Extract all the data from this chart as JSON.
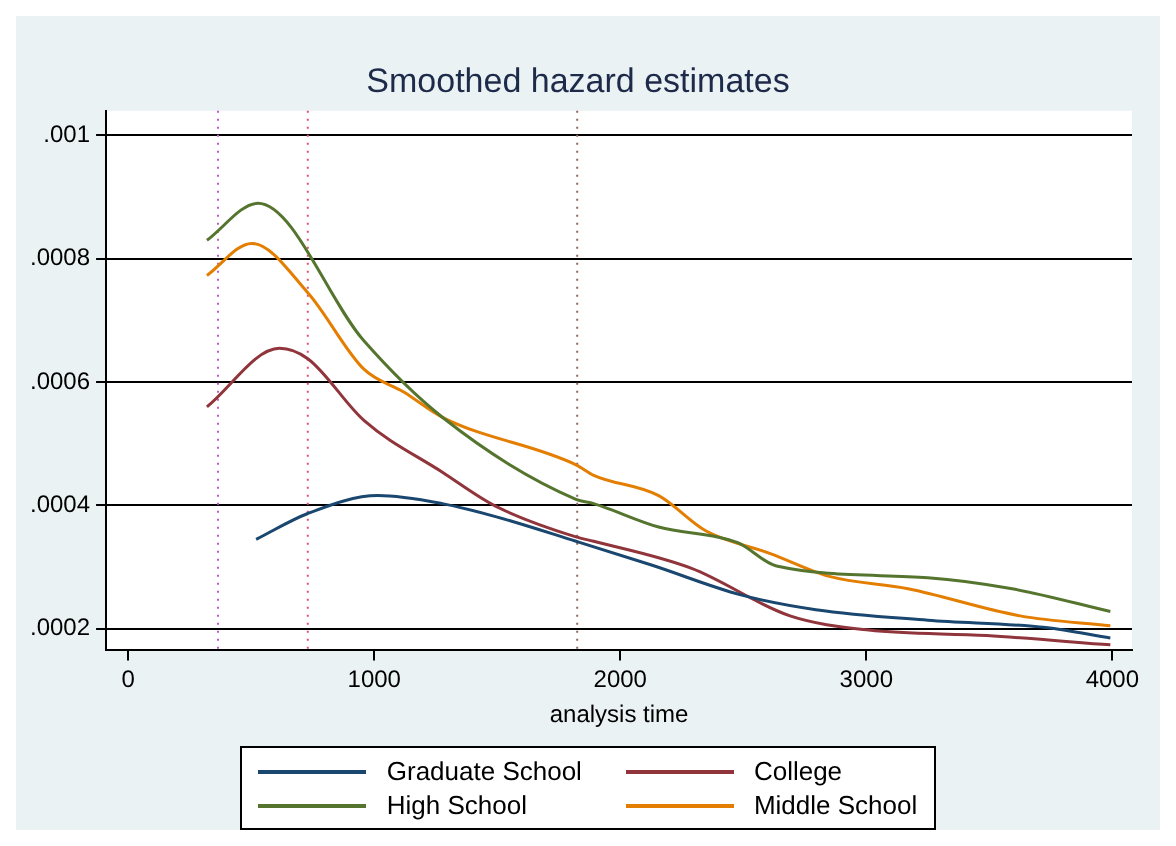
{
  "chart_data": {
    "type": "line",
    "title": "Smoothed hazard estimates",
    "xlabel": "analysis time",
    "series": [
      {
        "name": "Graduate School",
        "color": "#1a476f",
        "x": [
          520,
          730,
          1015,
          1277,
          1493,
          1820,
          2130,
          2490,
          2795,
          3250,
          3730,
          3992
        ],
        "values": [
          0.000345,
          0.000387,
          0.000416,
          0.000403,
          0.000382,
          0.000342,
          0.000303,
          0.000255,
          0.000231,
          0.000214,
          0.000202,
          0.000185
        ]
      },
      {
        "name": "College",
        "color": "#90353b",
        "x": [
          320,
          615,
          730,
          958,
          1277,
          1493,
          1820,
          1892,
          2290,
          2690,
          3010,
          3490,
          3992
        ],
        "values": [
          0.00056,
          0.000655,
          0.000638,
          0.000538,
          0.000454,
          0.000399,
          0.000349,
          0.000342,
          0.000298,
          0.000221,
          0.000198,
          0.000189,
          0.000174
        ]
      },
      {
        "name": "High School",
        "color": "#55752f",
        "x": [
          320,
          527,
          958,
          1277,
          1820,
          1892,
          2156,
          2475,
          2635,
          3250,
          3593,
          3992
        ],
        "values": [
          0.00083,
          0.00089,
          0.000667,
          0.000543,
          0.00041,
          0.000403,
          0.000365,
          0.00034,
          0.000302,
          0.000283,
          0.000265,
          0.000228
        ]
      },
      {
        "name": "Middle School",
        "color": "#e37e00",
        "x": [
          320,
          502,
          730,
          958,
          1120,
          1277,
          1820,
          1892,
          2156,
          2347,
          2610,
          2850,
          3170,
          3625,
          3992
        ],
        "values": [
          0.000773,
          0.000825,
          0.000745,
          0.000621,
          0.000584,
          0.000543,
          0.000466,
          0.000449,
          0.000416,
          0.000359,
          0.000322,
          0.000285,
          0.000265,
          0.000221,
          0.000205
        ]
      }
    ],
    "xlim": [
      -90,
      4080
    ],
    "xticks": [
      0,
      1000,
      2000,
      3000,
      4000
    ],
    "ylim": [
      0.000165,
      0.00104
    ],
    "yticks": [
      {
        "value": 0.0002,
        "label": ".0002"
      },
      {
        "value": 0.0004,
        "label": ".0004"
      },
      {
        "value": 0.0006,
        "label": ".0006"
      },
      {
        "value": 0.0008,
        "label": ".0008"
      },
      {
        "value": 0.001,
        "label": ".001"
      }
    ],
    "ref_lines": [
      {
        "axis": "x",
        "value": 365,
        "color": "#c060c0",
        "line_style": "dotted"
      },
      {
        "axis": "x",
        "value": 730,
        "color": "#e0507a",
        "line_style": "dotted"
      },
      {
        "axis": "x",
        "value": 1825,
        "color": "#8a6a60",
        "line_style": "dotted"
      }
    ],
    "grid": "y",
    "legend": "bottom",
    "marker": "none",
    "line_style": "solid"
  }
}
